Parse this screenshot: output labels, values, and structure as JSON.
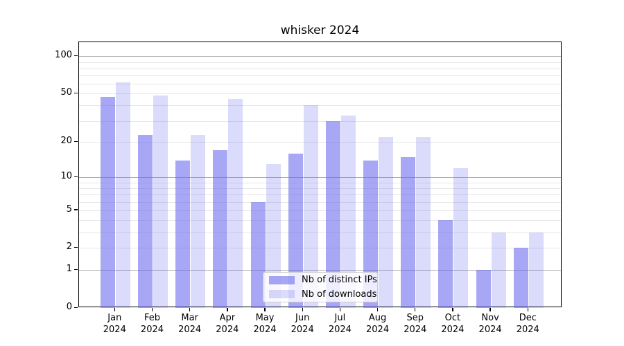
{
  "title": "whisker 2024",
  "chart_data": {
    "type": "bar",
    "title": "whisker 2024",
    "categories": [
      "Jan",
      "Feb",
      "Mar",
      "Apr",
      "May",
      "Jun",
      "Jul",
      "Aug",
      "Sep",
      "Oct",
      "Nov",
      "Dec"
    ],
    "year_label": "2024",
    "series": [
      {
        "name": "Nb of distinct IPs",
        "color": "rgba(101,101,237,0.57)",
        "values": [
          47,
          23,
          14,
          17,
          6,
          16,
          30,
          14,
          15,
          4,
          1,
          2
        ]
      },
      {
        "name": "Nb of downloads",
        "color": "rgba(101,101,237,0.23)",
        "values": [
          62,
          48,
          23,
          45,
          13,
          40,
          33,
          22,
          22,
          12,
          3,
          3
        ]
      }
    ],
    "yscale": "log1p",
    "ylim": [
      0,
      130
    ],
    "yticks": [
      0,
      1,
      2,
      5,
      10,
      20,
      50,
      100
    ],
    "grid_major": [
      1,
      10,
      100
    ],
    "grid_minor": [
      2,
      3,
      4,
      5,
      6,
      7,
      8,
      9,
      20,
      30,
      40,
      50,
      60,
      70,
      80,
      90
    ],
    "legend_position": "lower-center",
    "colors": {
      "grid_minor": "#e7e7e7",
      "grid_major": "#b0b0b0",
      "spine": "#000000",
      "text": "#000000"
    }
  }
}
